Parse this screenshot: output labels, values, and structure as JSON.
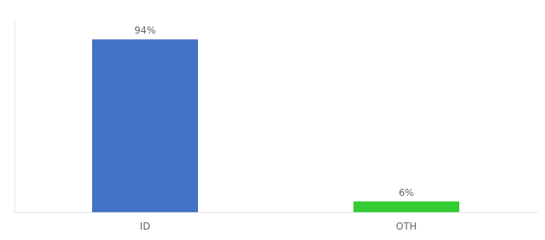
{
  "chart_data": {
    "type": "bar",
    "categories": [
      "ID",
      "OTH"
    ],
    "values": [
      94,
      6
    ],
    "value_labels": [
      "94%",
      "6%"
    ],
    "colors": [
      "#4472c4",
      "#33cc33"
    ],
    "ylim": [
      0,
      105
    ],
    "grid": false,
    "data_labels": true,
    "tick_labels": "x"
  }
}
